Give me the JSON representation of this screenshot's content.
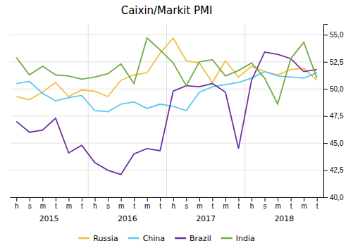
{
  "chart_data": {
    "type": "line",
    "title": "Caixin/Markit PMI",
    "categories": [
      "h",
      "s",
      "m",
      "t",
      "m",
      "t",
      "h",
      "s",
      "m",
      "t",
      "m",
      "t",
      "h",
      "s",
      "m",
      "t",
      "m",
      "t",
      "h",
      "s",
      "m",
      "t",
      "m",
      "t"
    ],
    "annotations": [
      "2015",
      "2016",
      "2017",
      "2018"
    ],
    "series": [
      {
        "name": "Russia",
        "color": "#f0c040",
        "values": [
          49.3,
          49.0,
          49.7,
          50.6,
          49.3,
          49.9,
          49.8,
          49.3,
          50.8,
          51.3,
          51.5,
          53.3,
          54.7,
          52.6,
          52.4,
          50.6,
          52.6,
          51.1,
          52.1,
          51.6,
          51.3,
          51.8,
          51.9,
          50.8
        ]
      },
      {
        "name": "China",
        "color": "#5bc8f0",
        "values": [
          50.5,
          50.7,
          49.6,
          48.9,
          49.2,
          49.4,
          48.0,
          47.9,
          48.6,
          48.8,
          48.2,
          48.6,
          48.4,
          48.0,
          49.7,
          50.2,
          50.4,
          50.6,
          51.0,
          51.6,
          51.2,
          51.1,
          51.0,
          51.5
        ]
      },
      {
        "name": "Brazil",
        "color": "#7030a0",
        "values": [
          47.0,
          46.0,
          46.2,
          47.3,
          44.1,
          44.8,
          43.2,
          42.5,
          42.1,
          44.0,
          44.5,
          44.3,
          49.8,
          50.3,
          50.2,
          50.5,
          49.7,
          44.5,
          50.8,
          53.4,
          53.2,
          52.8,
          51.6,
          51.8
        ]
      },
      {
        "name": "India",
        "color": "#70ad47",
        "values": [
          52.9,
          51.3,
          52.1,
          51.3,
          51.2,
          50.9,
          51.1,
          51.4,
          52.3,
          50.5,
          54.7,
          53.6,
          52.4,
          50.3,
          52.5,
          52.7,
          51.2,
          51.7,
          52.4,
          51.0,
          48.6,
          52.8,
          54.3,
          51.0
        ]
      }
    ],
    "ylim": [
      40.0,
      56.0
    ],
    "yticks": [
      {
        "value": 40.0,
        "label": "40,0"
      },
      {
        "value": 42.5,
        "label": "42,5"
      },
      {
        "value": 45.0,
        "label": "45,0"
      },
      {
        "value": 47.5,
        "label": "47,5"
      },
      {
        "value": 50.0,
        "label": "50,0"
      },
      {
        "value": 52.5,
        "label": "52,5"
      },
      {
        "value": 55.0,
        "label": "55,0"
      }
    ],
    "grid": true,
    "legend": "bottom"
  }
}
